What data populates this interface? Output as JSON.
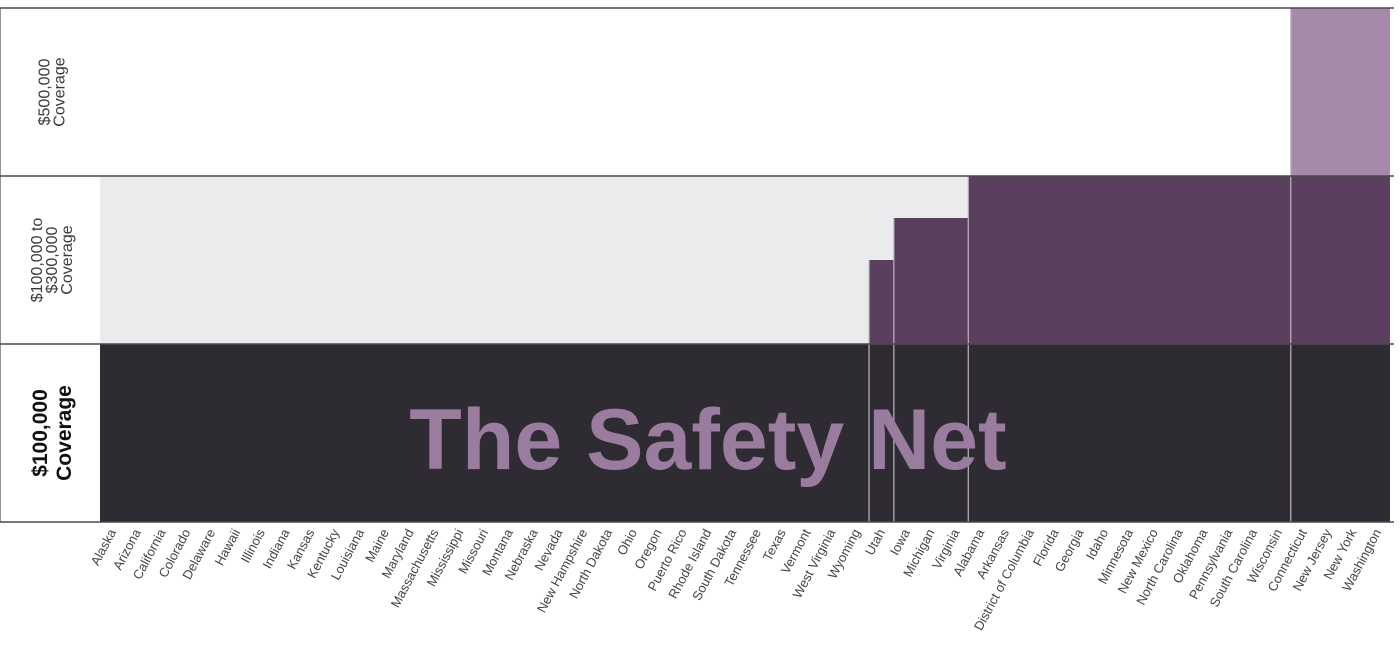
{
  "chart_data": {
    "type": "bar",
    "title": "The Safety Net",
    "tiers": [
      {
        "key": "t1",
        "label_lines": [
          "$100,000",
          "Coverage"
        ]
      },
      {
        "key": "t2",
        "label_lines": [
          "$100,000 to",
          "$300,000",
          "Coverage"
        ]
      },
      {
        "key": "t3",
        "label_lines": [
          "$500,000",
          "Coverage"
        ]
      }
    ],
    "colors": {
      "tier1": "#2f2b33",
      "tier2": "#5a3f5e",
      "tier3": "#a58aa9",
      "empty_tier2": "#ebebee",
      "empty_tier3": "#ffffff",
      "title": "#9a7d9e"
    },
    "groups": [
      {
        "coverage_level": 1,
        "states": [
          "Alaska",
          "Arizona",
          "California",
          "Colorado",
          "Delaware",
          "Hawaii",
          "Illinois",
          "Indiana",
          "Kansas",
          "Kentucky",
          "Louisiana",
          "Maine",
          "Maryland",
          "Massachusetts",
          "Mississippi",
          "Missouri",
          "Montana",
          "Nebraska",
          "Nevada",
          "New Hampshire",
          "North Dakota",
          "Ohio",
          "Oregon",
          "Puerto Rico",
          "Rhode Island",
          "South Dakota",
          "Tennessee",
          "Texas",
          "Vermont",
          "West Virginia",
          "Wyoming"
        ]
      },
      {
        "coverage_level": 1.5,
        "states": [
          "Utah"
        ]
      },
      {
        "coverage_level": 1.75,
        "states": [
          "Iowa",
          "Michigan",
          "Virginia"
        ]
      },
      {
        "coverage_level": 2,
        "states": [
          "Alabama",
          "Arkansas",
          "District of Columbia",
          "Florida",
          "Georgia",
          "Idaho",
          "Minnesota",
          "New Mexico",
          "North Carolina",
          "Oklahoma",
          "Pennsylvania",
          "South Carolina",
          "Wisconsin"
        ]
      },
      {
        "coverage_level": 3,
        "states": [
          "Connecticut",
          "New Jersey",
          "New York",
          "Washington"
        ]
      }
    ]
  }
}
